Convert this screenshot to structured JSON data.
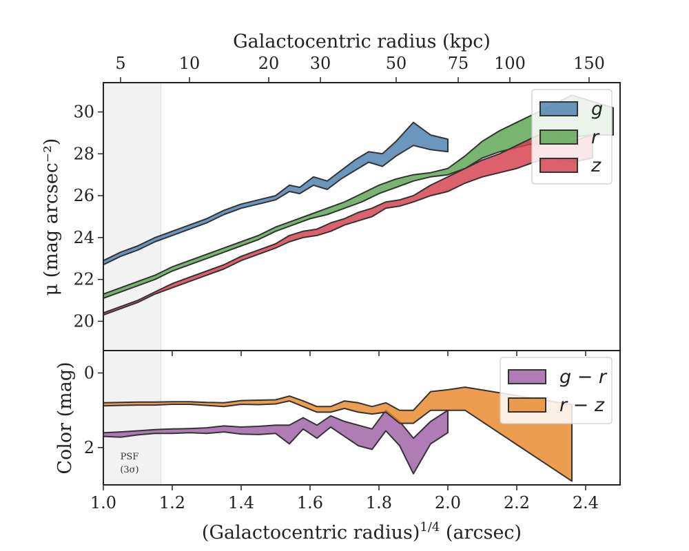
{
  "colors": {
    "g": "#4a7fb0",
    "r": "#5aa552",
    "z": "#d43e4d",
    "g_r": "#9e5fa6",
    "r_z": "#e8872a",
    "edge": "#333333",
    "psf_shade": "#f2f2f2"
  },
  "chart_data": [
    {
      "id": "surface-brightness",
      "type": "area",
      "xlabel": "",
      "ylabel": "μ (mag arcsec⁻²)",
      "xlim": [
        1.0,
        2.5
      ],
      "ylim": [
        31.4,
        18.6
      ],
      "y_inverted": true,
      "yticks": [
        20,
        22,
        24,
        26,
        28,
        30
      ],
      "xticks": [
        1.0,
        1.2,
        1.4,
        1.6,
        1.8,
        2.0,
        2.2,
        2.4
      ],
      "top_axis": {
        "label": "Galactocentric radius (kpc)",
        "ticks": [
          {
            "x": 1.05,
            "label": "5"
          },
          {
            "x": 1.25,
            "label": "10"
          },
          {
            "x": 1.48,
            "label": "20"
          },
          {
            "x": 1.63,
            "label": "30"
          },
          {
            "x": 1.85,
            "label": "50"
          },
          {
            "x": 2.03,
            "label": "75"
          },
          {
            "x": 2.18,
            "label": "100"
          },
          {
            "x": 2.41,
            "label": "150"
          }
        ]
      },
      "psf_region": {
        "x0": 1.0,
        "x1": 1.167
      },
      "legend": {
        "position": "top-right",
        "entries": [
          "g",
          "r",
          "z"
        ]
      },
      "series": [
        {
          "name": "g",
          "color_key": "g",
          "x": [
            1.0,
            1.05,
            1.1,
            1.15,
            1.2,
            1.25,
            1.3,
            1.35,
            1.4,
            1.45,
            1.5,
            1.54,
            1.57,
            1.61,
            1.65,
            1.69,
            1.73,
            1.77,
            1.81,
            1.85,
            1.9,
            1.95,
            2.0
          ],
          "lower": [
            22.7,
            23.1,
            23.4,
            23.8,
            24.1,
            24.4,
            24.7,
            25.1,
            25.4,
            25.6,
            25.8,
            26.2,
            26.1,
            26.5,
            26.3,
            26.8,
            27.2,
            27.6,
            27.4,
            27.9,
            28.4,
            28.2,
            28.1
          ],
          "upper": [
            22.9,
            23.3,
            23.6,
            24.0,
            24.3,
            24.6,
            24.9,
            25.3,
            25.6,
            25.8,
            26.0,
            26.5,
            26.4,
            26.9,
            26.7,
            27.2,
            27.7,
            28.1,
            28.0,
            28.6,
            29.5,
            28.9,
            28.7
          ]
        },
        {
          "name": "r",
          "color_key": "r",
          "x": [
            1.0,
            1.05,
            1.1,
            1.15,
            1.2,
            1.25,
            1.3,
            1.35,
            1.4,
            1.45,
            1.5,
            1.55,
            1.6,
            1.65,
            1.7,
            1.75,
            1.8,
            1.85,
            1.9,
            1.95,
            2.0,
            2.05,
            2.1,
            2.15,
            2.2,
            2.25,
            2.3,
            2.36,
            2.42,
            2.48
          ],
          "lower": [
            21.1,
            21.4,
            21.7,
            22.0,
            22.4,
            22.7,
            23.0,
            23.3,
            23.6,
            23.9,
            24.3,
            24.6,
            24.9,
            25.1,
            25.4,
            25.7,
            26.1,
            26.4,
            26.7,
            26.9,
            27.0,
            27.3,
            27.8,
            28.1,
            28.3,
            28.5,
            28.7,
            28.8,
            28.9,
            28.9
          ],
          "upper": [
            21.3,
            21.6,
            21.9,
            22.2,
            22.6,
            22.9,
            23.2,
            23.5,
            23.8,
            24.1,
            24.5,
            24.8,
            25.1,
            25.4,
            25.7,
            26.1,
            26.5,
            26.8,
            27.0,
            27.1,
            27.3,
            27.9,
            28.6,
            29.1,
            29.5,
            29.9,
            30.3,
            30.8,
            30.5,
            30.2
          ]
        },
        {
          "name": "z",
          "color_key": "z",
          "x": [
            1.0,
            1.05,
            1.1,
            1.15,
            1.2,
            1.25,
            1.3,
            1.35,
            1.4,
            1.45,
            1.5,
            1.54,
            1.58,
            1.62,
            1.66,
            1.7,
            1.74,
            1.78,
            1.82,
            1.86,
            1.9,
            1.95,
            2.0,
            2.05,
            2.1,
            2.15,
            2.2,
            2.25,
            2.3,
            2.36,
            2.42
          ],
          "lower": [
            20.3,
            20.6,
            20.9,
            21.3,
            21.6,
            21.9,
            22.2,
            22.5,
            22.9,
            23.2,
            23.5,
            23.8,
            24.0,
            24.1,
            24.3,
            24.6,
            24.8,
            25.0,
            25.4,
            25.5,
            25.7,
            26.0,
            26.2,
            26.6,
            26.9,
            27.1,
            27.3,
            27.6,
            27.8,
            27.6,
            27.8
          ],
          "upper": [
            20.4,
            20.7,
            21.0,
            21.4,
            21.8,
            22.1,
            22.4,
            22.7,
            23.1,
            23.4,
            23.7,
            24.1,
            24.3,
            24.4,
            24.7,
            24.9,
            25.2,
            25.4,
            25.7,
            25.8,
            26.0,
            26.5,
            26.9,
            27.3,
            27.7,
            28.0,
            28.4,
            28.8,
            29.1,
            28.6,
            28.9
          ]
        }
      ]
    },
    {
      "id": "color-profile",
      "type": "area",
      "xlabel": "(Galactocentric radius)^1/4 (arcsec)",
      "ylabel": "Color (mag)",
      "xlim": [
        1.0,
        2.5
      ],
      "ylim": [
        -0.6,
        3.0
      ],
      "yticks": [
        0,
        2
      ],
      "xticks": [
        1.0,
        1.2,
        1.4,
        1.6,
        1.8,
        2.0,
        2.2,
        2.4
      ],
      "psf_region": {
        "x0": 1.0,
        "x1": 1.167
      },
      "annotation": {
        "line1": "PSF",
        "line2": "(3σ)"
      },
      "legend": {
        "position": "top-right",
        "entries": [
          "g − r",
          "r − z"
        ]
      },
      "series": [
        {
          "name": "g − r",
          "color_key": "g_r",
          "x": [
            1.0,
            1.05,
            1.1,
            1.15,
            1.2,
            1.25,
            1.3,
            1.35,
            1.4,
            1.45,
            1.5,
            1.54,
            1.58,
            1.62,
            1.66,
            1.7,
            1.74,
            1.78,
            1.82,
            1.86,
            1.9,
            1.95,
            2.0
          ],
          "lower": [
            1.6,
            1.58,
            1.55,
            1.52,
            1.5,
            1.49,
            1.47,
            1.42,
            1.45,
            1.43,
            1.4,
            1.4,
            1.2,
            1.4,
            1.15,
            1.3,
            1.4,
            1.5,
            1.0,
            1.3,
            1.75,
            1.3,
            1.0
          ],
          "upper": [
            1.7,
            1.72,
            1.66,
            1.62,
            1.62,
            1.6,
            1.62,
            1.58,
            1.64,
            1.65,
            1.62,
            1.9,
            1.5,
            1.75,
            1.45,
            1.7,
            1.95,
            2.05,
            1.55,
            1.95,
            2.7,
            1.9,
            1.6
          ]
        },
        {
          "name": "r − z",
          "color_key": "r_z",
          "x": [
            1.0,
            1.05,
            1.1,
            1.15,
            1.2,
            1.25,
            1.3,
            1.35,
            1.4,
            1.45,
            1.5,
            1.54,
            1.58,
            1.62,
            1.66,
            1.7,
            1.74,
            1.78,
            1.82,
            1.86,
            1.9,
            1.95,
            2.0,
            2.05,
            2.36
          ],
          "lower": [
            0.8,
            0.79,
            0.78,
            0.78,
            0.77,
            0.77,
            0.79,
            0.8,
            0.74,
            0.73,
            0.72,
            0.62,
            0.75,
            0.9,
            0.9,
            0.75,
            0.8,
            0.9,
            0.8,
            1.0,
            1.0,
            0.5,
            0.45,
            0.38,
            0.85
          ],
          "upper": [
            0.88,
            0.87,
            0.86,
            0.86,
            0.84,
            0.84,
            0.87,
            0.9,
            0.84,
            0.85,
            0.83,
            0.75,
            0.9,
            1.05,
            1.05,
            0.95,
            1.05,
            1.1,
            1.05,
            1.35,
            1.35,
            1.0,
            1.0,
            1.0,
            2.9
          ]
        }
      ]
    }
  ]
}
